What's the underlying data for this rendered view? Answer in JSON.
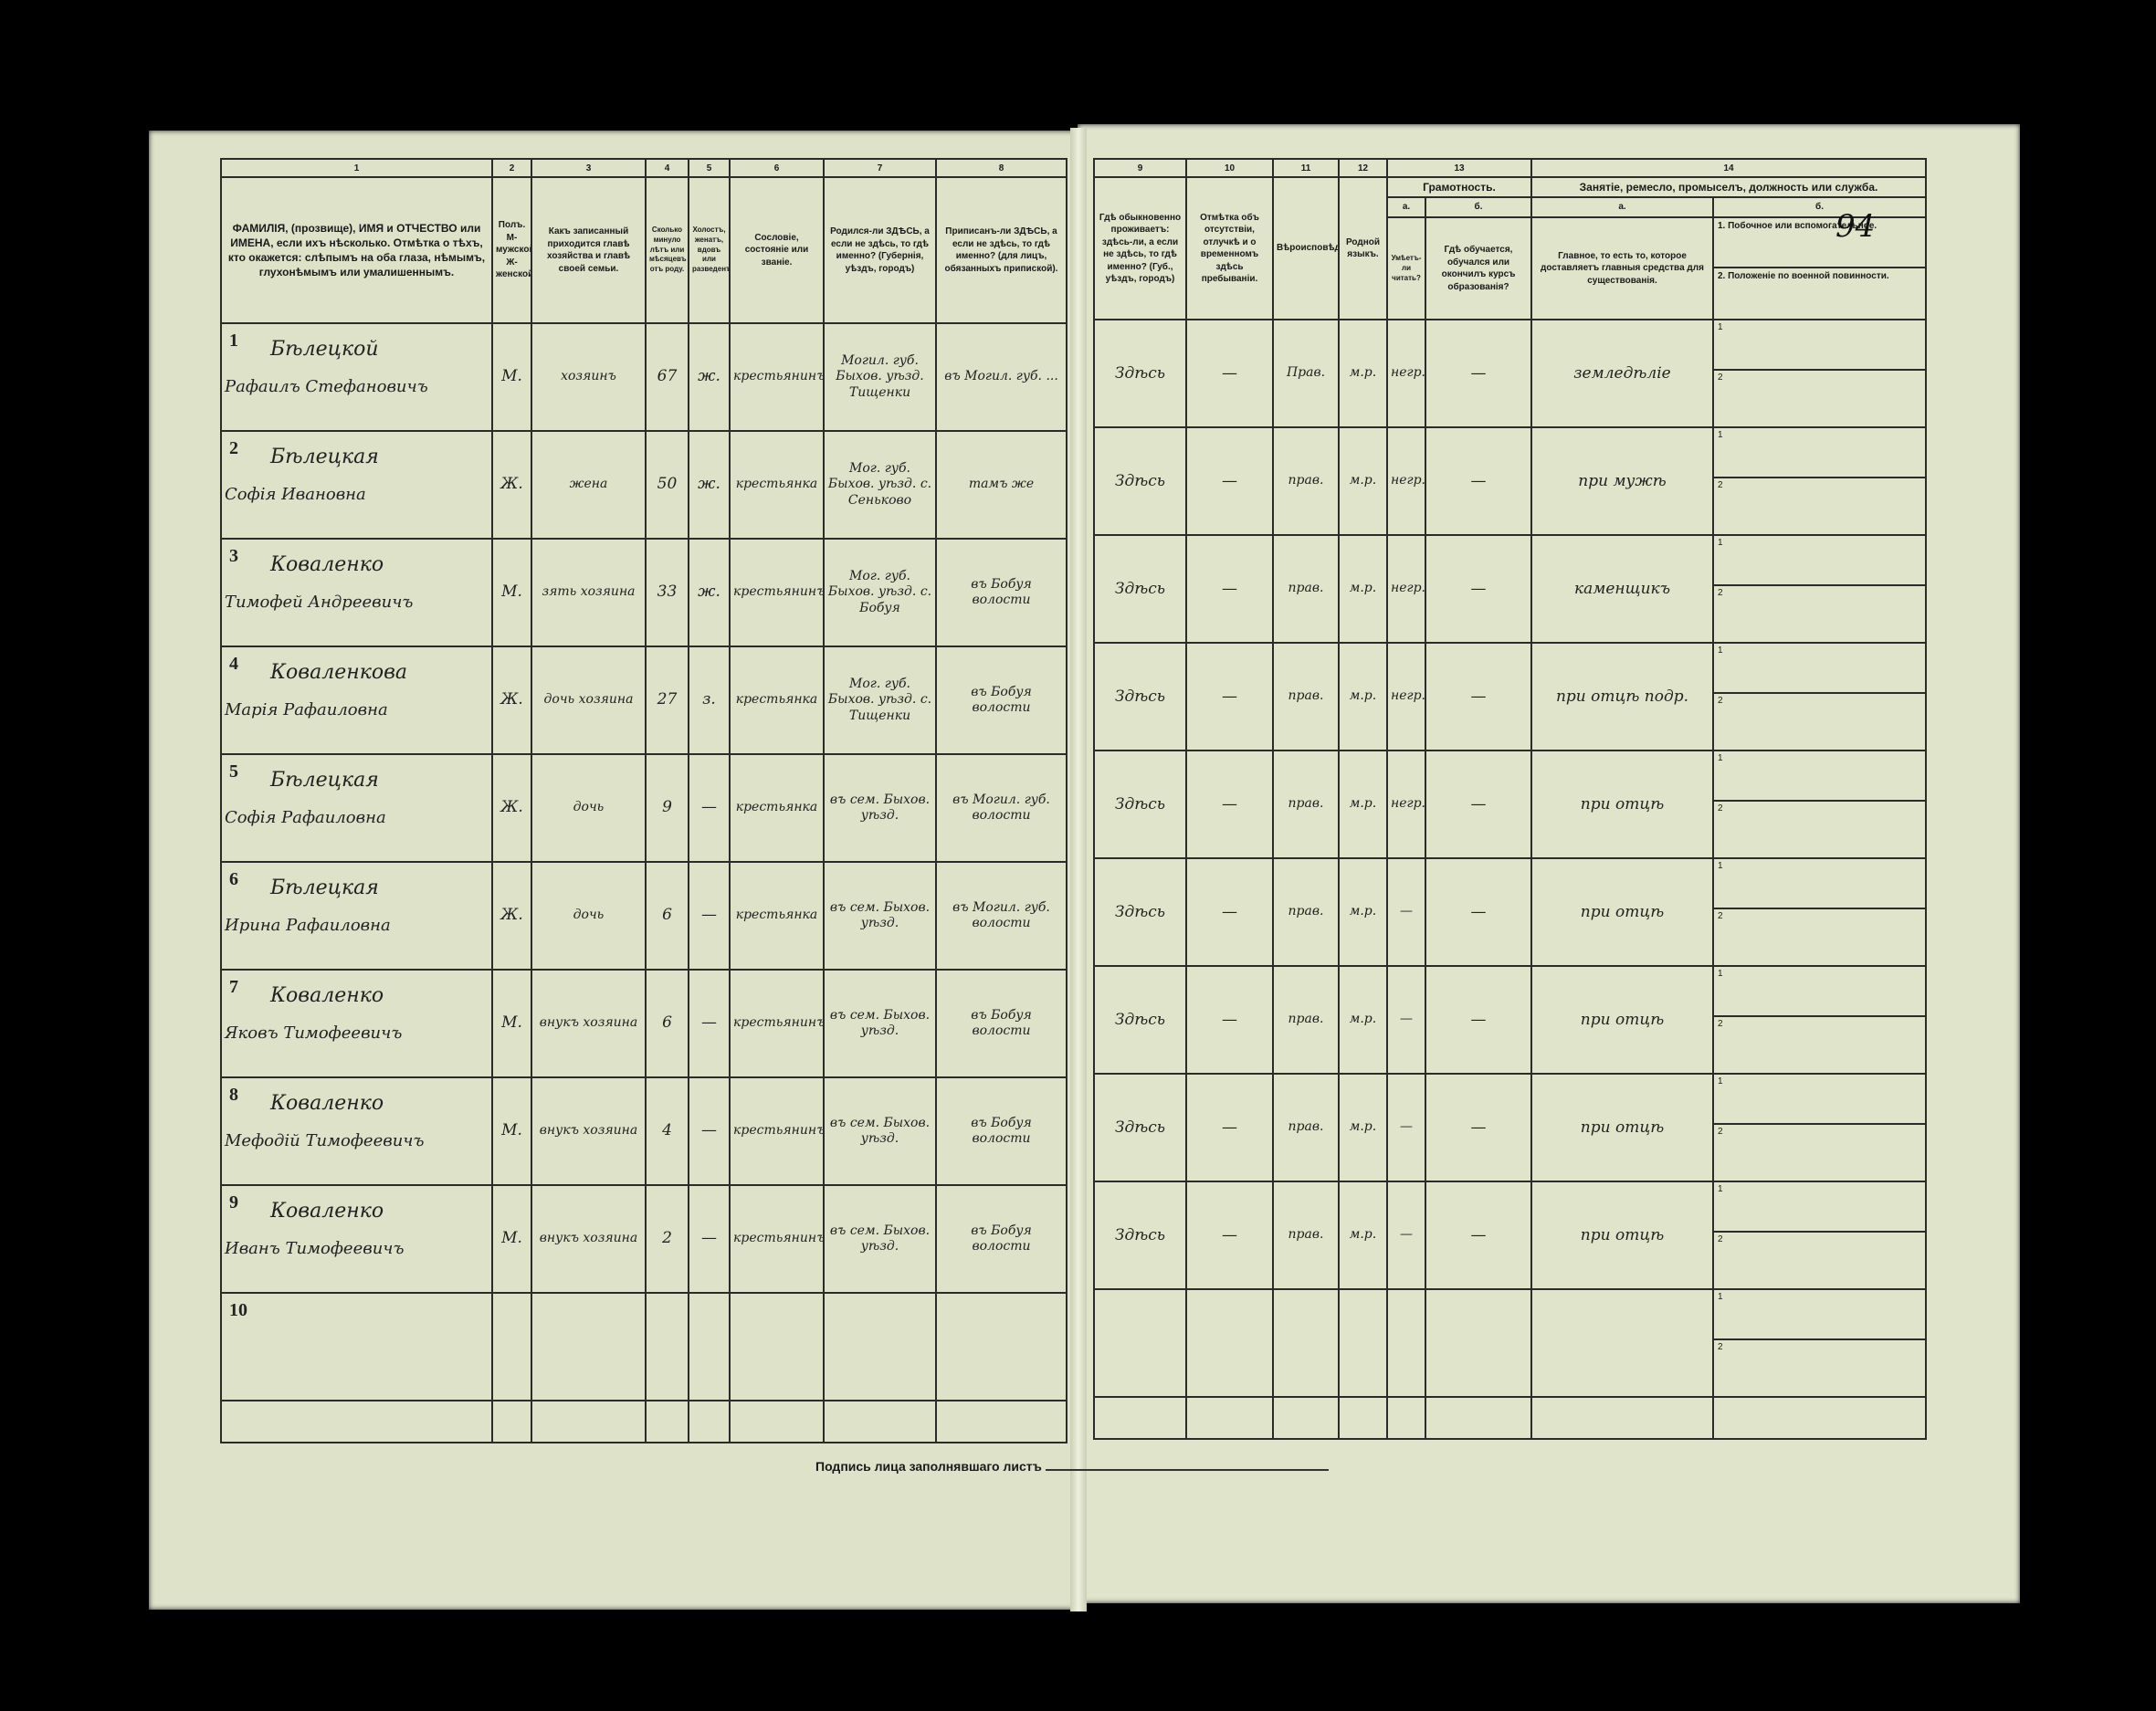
{
  "form": {
    "left_column_numbers": [
      "1",
      "2",
      "3",
      "4",
      "5",
      "6",
      "7",
      "8"
    ],
    "right_column_numbers": [
      "9",
      "10",
      "11",
      "12",
      "13",
      "14"
    ],
    "headers_left": [
      "ФАМИЛІЯ, (прозвище), ИМЯ и ОТЧЕСТВО или ИМЕНА, если ихъ нѣсколько. Отмѣтка о тѣхъ, кто окажется: слѣпымъ на оба глаза, нѣмымъ, глухонѣмымъ или умалишеннымъ.",
      "Полъ. М-мужской. Ж-женской.",
      "Какъ записанный приходится главѣ хозяйства и главѣ своей семьи.",
      "Сколько минуло лѣтъ или мѣсяцевъ отъ роду.",
      "Холостъ, женатъ, вдовъ или разведенъ.",
      "Сословіе, состояніе или званіе.",
      "Родился-ли ЗДѢСЬ, а если не здѣсь, то гдѣ именно? (Губернія, уѣздъ, городъ)",
      "Приписанъ-ли ЗДѢСЬ, а если не здѣсь, то гдѣ именно? (для лицъ, обязанныхъ припиской)."
    ],
    "headers_right": {
      "c9": "Гдѣ обыкновенно проживаетъ: здѣсь-ли, а если не здѣсь, то гдѣ именно? (Губ., уѣздъ, городъ)",
      "c10": "Отмѣтка объ отсутствіи, отлучкѣ и о временномъ здѣсь пребываніи.",
      "c11": "Вѣроисповѣданіе.",
      "c12": "Родной языкъ.",
      "c13": "Грамотность.",
      "c13a_letter": "а.",
      "c13b_letter": "б.",
      "c13a": "Умѣетъ-ли читать?",
      "c13b": "Гдѣ обучается, обучался или окончилъ курсъ образованія?",
      "c14": "Занятіе, ремесло, промыселъ, должность или служба.",
      "c14a_letter": "а.",
      "c14b_letter": "б.",
      "c14a": "Главное, то есть то, которое доставляетъ главныя средства для существованія.",
      "c14b1": "1. Побочное или вспомогательное.",
      "c14b2": "2. Положеніе по военной повинности."
    },
    "page_number": "94",
    "signature_label": "Подпись лица заполнявшаго листъ",
    "sub_labels": [
      "1",
      "2"
    ]
  },
  "rows": [
    {
      "n": "1",
      "surname": "Бѣлецкой",
      "given": "Рафаилъ Стефановичъ",
      "sex": "М.",
      "relation": "хозяинъ",
      "age": "67",
      "marital": "ж.",
      "estate": "крестьянинъ",
      "birth": "Могил. губ. Быхов. уѣзд. Тищенки",
      "reg": "въ Могил. губ. ...",
      "residence": "Здѣсь",
      "absent": "—",
      "religion": "Прав.",
      "lang": "м.р.",
      "literate": "негр.",
      "schooling": "—",
      "occupation": "земледѣліе"
    },
    {
      "n": "2",
      "surname": "Бѣлецкая",
      "given": "Софія Ивановна",
      "sex": "Ж.",
      "relation": "жена",
      "age": "50",
      "marital": "ж.",
      "estate": "крестьянка",
      "birth": "Мог. губ. Быхов. уѣзд. с. Сеньково",
      "reg": "тамъ же",
      "residence": "Здѣсь",
      "absent": "—",
      "religion": "прав.",
      "lang": "м.р.",
      "literate": "негр.",
      "schooling": "—",
      "occupation": "при мужѣ"
    },
    {
      "n": "3",
      "surname": "Коваленко",
      "given": "Тимофей Андреевичъ",
      "sex": "М.",
      "relation": "зять хозяина",
      "age": "33",
      "marital": "ж.",
      "estate": "крестьянинъ",
      "birth": "Мог. губ. Быхов. уѣзд. с. Бобуя",
      "reg": "въ Бобуя волости",
      "residence": "Здѣсь",
      "absent": "—",
      "religion": "прав.",
      "lang": "м.р.",
      "literate": "негр.",
      "schooling": "—",
      "occupation": "каменщикъ"
    },
    {
      "n": "4",
      "surname": "Коваленкова",
      "given": "Марія Рафаиловна",
      "sex": "Ж.",
      "relation": "дочь хозяина",
      "age": "27",
      "marital": "з.",
      "estate": "крестьянка",
      "birth": "Мог. губ. Быхов. уѣзд. с. Тищенки",
      "reg": "въ Бобуя волости",
      "residence": "Здѣсь",
      "absent": "—",
      "religion": "прав.",
      "lang": "м.р.",
      "literate": "негр.",
      "schooling": "—",
      "occupation": "при отцѣ подр."
    },
    {
      "n": "5",
      "surname": "Бѣлецкая",
      "given": "Софія Рафаиловна",
      "sex": "Ж.",
      "relation": "дочь",
      "age": "9",
      "marital": "—",
      "estate": "крестьянка",
      "birth": "въ сем. Быхов. уѣзд.",
      "reg": "въ Могил. губ. волости",
      "residence": "Здѣсь",
      "absent": "—",
      "religion": "прав.",
      "lang": "м.р.",
      "literate": "негр.",
      "schooling": "—",
      "occupation": "при отцѣ"
    },
    {
      "n": "6",
      "surname": "Бѣлецкая",
      "given": "Ирина Рафаиловна",
      "sex": "Ж.",
      "relation": "дочь",
      "age": "6",
      "marital": "—",
      "estate": "крестьянка",
      "birth": "въ сем. Быхов. уѣзд.",
      "reg": "въ Могил. губ. волости",
      "residence": "Здѣсь",
      "absent": "—",
      "religion": "прав.",
      "lang": "м.р.",
      "literate": "—",
      "schooling": "—",
      "occupation": "при отцѣ"
    },
    {
      "n": "7",
      "surname": "Коваленко",
      "given": "Яковъ Тимофеевичъ",
      "sex": "М.",
      "relation": "внукъ хозяина",
      "age": "6",
      "marital": "—",
      "estate": "крестьянинъ",
      "birth": "въ сем. Быхов. уѣзд.",
      "reg": "въ Бобуя волости",
      "residence": "Здѣсь",
      "absent": "—",
      "religion": "прав.",
      "lang": "м.р.",
      "literate": "—",
      "schooling": "—",
      "occupation": "при отцѣ"
    },
    {
      "n": "8",
      "surname": "Коваленко",
      "given": "Мефодій Тимофеевичъ",
      "sex": "М.",
      "relation": "внукъ хозяина",
      "age": "4",
      "marital": "—",
      "estate": "крестьянинъ",
      "birth": "въ сем. Быхов. уѣзд.",
      "reg": "въ Бобуя волости",
      "residence": "Здѣсь",
      "absent": "—",
      "religion": "прав.",
      "lang": "м.р.",
      "literate": "—",
      "schooling": "—",
      "occupation": "при отцѣ"
    },
    {
      "n": "9",
      "surname": "Коваленко",
      "given": "Иванъ Тимофеевичъ",
      "sex": "М.",
      "relation": "внукъ хозяина",
      "age": "2",
      "marital": "—",
      "estate": "крестьянинъ",
      "birth": "въ сем. Быхов. уѣзд.",
      "reg": "въ Бобуя волости",
      "residence": "Здѣсь",
      "absent": "—",
      "religion": "прав.",
      "lang": "м.р.",
      "literate": "—",
      "schooling": "—",
      "occupation": "при отцѣ"
    },
    {
      "n": "10",
      "surname": "",
      "given": "",
      "sex": "",
      "relation": "",
      "age": "",
      "marital": "",
      "estate": "",
      "birth": "",
      "reg": "",
      "residence": "",
      "absent": "",
      "religion": "",
      "lang": "",
      "literate": "",
      "schooling": "",
      "occupation": ""
    }
  ],
  "colors": {
    "paper": "#dde2c9",
    "ink": "#1a1a1a",
    "background": "#000000"
  }
}
